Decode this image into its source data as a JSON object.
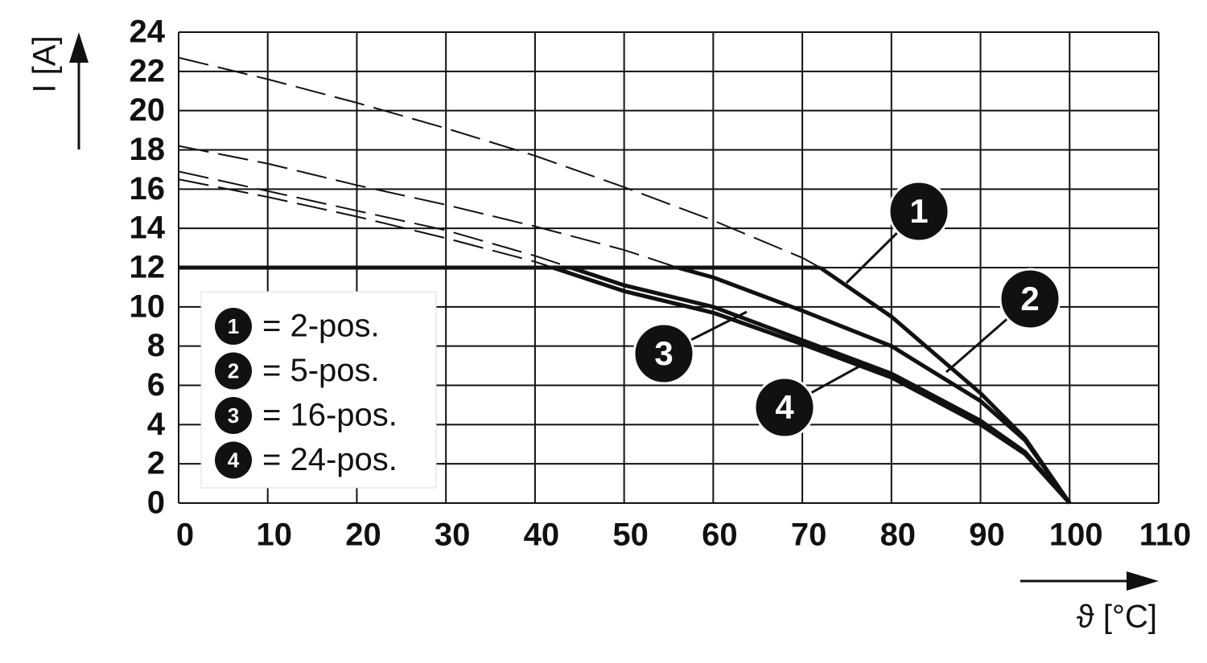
{
  "chart_data": {
    "type": "line",
    "y_label": "I [A]",
    "x_label": "ϑ [°C]",
    "xlim": [
      0,
      110
    ],
    "xticks": [
      0,
      10,
      20,
      30,
      40,
      50,
      60,
      70,
      80,
      90,
      100,
      110
    ],
    "ylim": [
      0,
      24
    ],
    "yticks": [
      0,
      2,
      4,
      6,
      8,
      10,
      12,
      14,
      16,
      18,
      20,
      22,
      24
    ],
    "grid": true,
    "legend": "lower left",
    "color": "#111111",
    "limit_line": {
      "x": [
        0,
        72
      ],
      "values": [
        12,
        12
      ]
    },
    "series": [
      {
        "name": "= 2-pos.",
        "marker": "1",
        "x": [
          0,
          10,
          20,
          30,
          40,
          50,
          60,
          70,
          72,
          80,
          90,
          95,
          100
        ],
        "dashed_values": [
          22.7,
          21.6,
          20.4,
          19.1,
          17.7,
          16.1,
          14.4,
          12.5,
          12,
          null,
          null,
          null,
          null
        ],
        "values": [
          null,
          null,
          null,
          null,
          null,
          null,
          null,
          null,
          12,
          9.5,
          5.6,
          3.3,
          0
        ]
      },
      {
        "name": "= 5-pos.",
        "marker": "2",
        "x": [
          0,
          10,
          20,
          30,
          40,
          50,
          56,
          60,
          70,
          80,
          90,
          95,
          100
        ],
        "dashed_values": [
          18.2,
          17.3,
          16.2,
          15.2,
          14.1,
          12.9,
          12,
          null,
          null,
          null,
          null,
          null,
          null
        ],
        "values": [
          null,
          null,
          null,
          null,
          null,
          null,
          12,
          11.5,
          9.8,
          8.0,
          5.2,
          3.2,
          0
        ]
      },
      {
        "name": "= 16-pos.",
        "marker": "3",
        "x": [
          0,
          10,
          20,
          30,
          40,
          44,
          50,
          60,
          70,
          80,
          90,
          95,
          100
        ],
        "dashed_values": [
          16.9,
          15.9,
          14.9,
          13.9,
          12.6,
          12,
          null,
          null,
          null,
          null,
          null,
          null,
          null
        ],
        "values": [
          null,
          null,
          null,
          null,
          null,
          12,
          11.1,
          10.0,
          8.3,
          6.6,
          4.2,
          2.6,
          0
        ]
      },
      {
        "name": "= 24-pos.",
        "marker": "4",
        "x": [
          0,
          10,
          20,
          30,
          40,
          42,
          50,
          60,
          70,
          80,
          90,
          95,
          100
        ],
        "dashed_values": [
          16.5,
          15.6,
          14.6,
          13.5,
          12.3,
          12,
          null,
          null,
          null,
          null,
          null,
          null,
          null
        ],
        "values": [
          null,
          null,
          null,
          null,
          null,
          12,
          10.8,
          9.7,
          8.1,
          6.4,
          4.0,
          2.5,
          0
        ]
      }
    ]
  }
}
